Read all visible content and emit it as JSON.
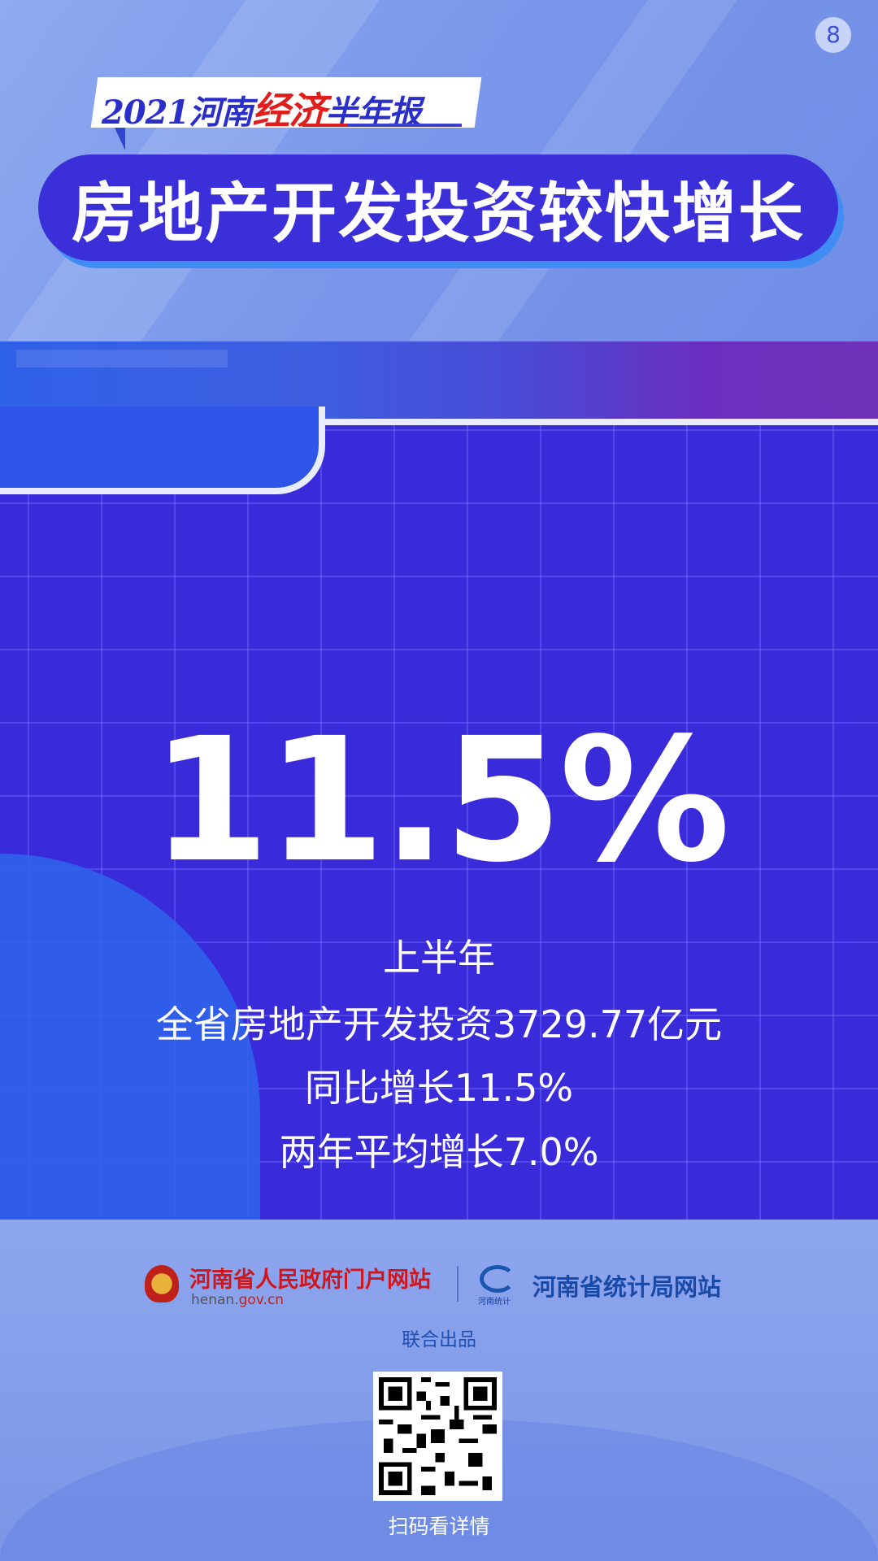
{
  "page_number": "8",
  "header": {
    "series_prefix": "2021河南",
    "series_highlight": "经济",
    "series_suffix": "半年报",
    "title": "房地产开发投资较快增长"
  },
  "main": {
    "headline_value": "11.5%",
    "lines": [
      "上半年",
      "全省房地产开发投资3729.77亿元",
      "同比增长11.5%",
      "两年平均增长7.0%"
    ]
  },
  "footer": {
    "gov_site_name": "河南省人民政府门户网站",
    "gov_url_prefix": "henan.",
    "gov_url_domain": "gov.cn",
    "stats_logo_caption": "河南统计",
    "stats_site_name": "河南省统计局网站",
    "joint_production": "联合出品",
    "scan_caption": "扫码看详情"
  },
  "colors": {
    "accent": "#3a2fd8",
    "highlight_red": "#e01e1e",
    "panel": "#3a2bda"
  }
}
